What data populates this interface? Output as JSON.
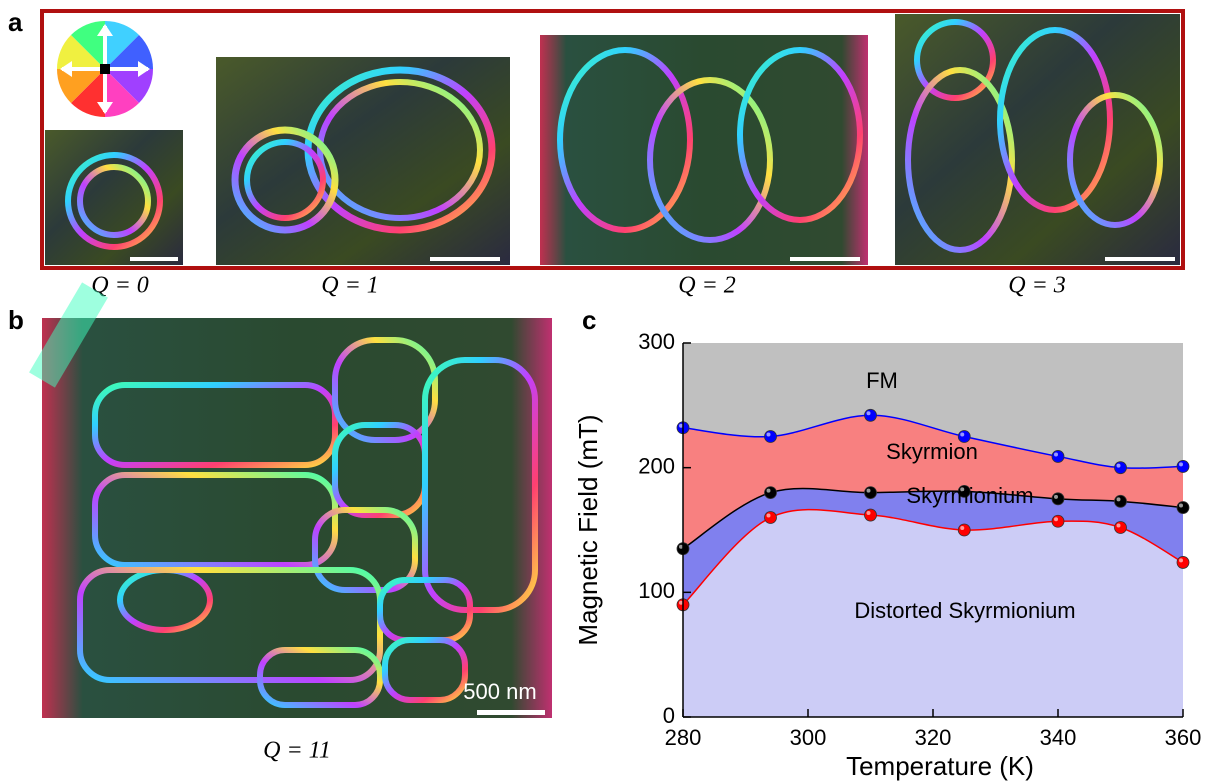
{
  "panels": {
    "a": {
      "label": "a",
      "captions": [
        "Q = 0",
        "Q = 1",
        "Q = 2",
        "Q = 3"
      ]
    },
    "b": {
      "label": "b",
      "caption": "Q = 11",
      "scale_bar": "500 nm"
    },
    "c": {
      "label": "c"
    }
  },
  "chart_data": {
    "type": "area",
    "x": [
      280,
      294,
      310,
      325,
      340,
      350,
      360
    ],
    "fill_above": "#c0c0c0",
    "series": [
      {
        "color": "#0000ff",
        "fill": "#f88080",
        "values": [
          232,
          225,
          242,
          225,
          209,
          200,
          201
        ]
      },
      {
        "color": "#000000",
        "fill": "#8080ee",
        "values": [
          135,
          180,
          180,
          181,
          175,
          173,
          168
        ]
      },
      {
        "color": "#ff0000",
        "fill": "#ccccf6",
        "values": [
          90,
          160,
          162,
          150,
          157,
          152,
          124
        ]
      }
    ],
    "annotations": [
      "FM",
      "Skyrmion",
      "Skyrmionium",
      "Distorted Skyrmionium"
    ],
    "xlabel": "Temperature (K)",
    "ylabel": "Magnetic Field (mT)",
    "xlim": [
      280,
      360
    ],
    "xticks": [
      280,
      300,
      320,
      340,
      360
    ],
    "ylim": [
      0,
      300
    ],
    "yticks": [
      0,
      100,
      200,
      300
    ]
  }
}
